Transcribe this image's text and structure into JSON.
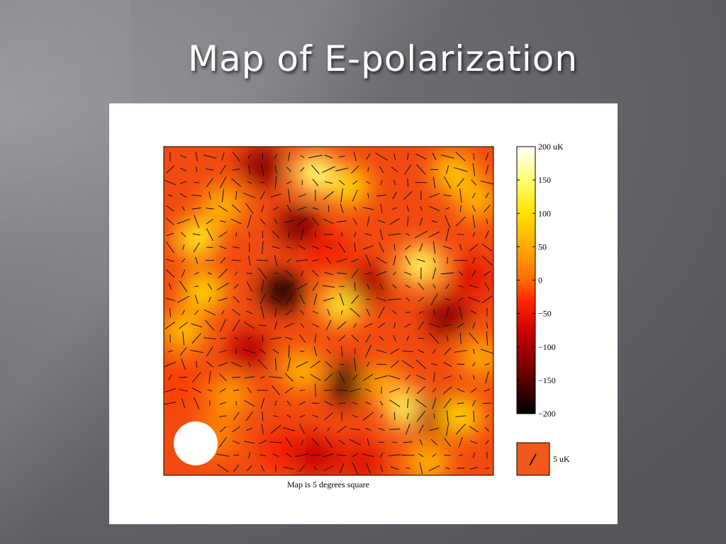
{
  "slide": {
    "title": "Map of E-polarization"
  },
  "chart_data": {
    "type": "heatmap",
    "title": "",
    "caption": "Map is 5 degrees square",
    "colorbar": {
      "top_label": "200 uK",
      "ticks": [
        200,
        150,
        100,
        50,
        0,
        -50,
        -100,
        -150,
        -200
      ],
      "tick_labels": [
        "200 uK",
        "150",
        "100",
        "50",
        "0",
        "−50",
        "−100",
        "−150",
        "−200"
      ],
      "range": [
        -200,
        200
      ],
      "colormap": "hot"
    },
    "vector_scale": {
      "label": "5 uK",
      "value": 5
    },
    "beam": {
      "shape": "circle",
      "location": "bottom-left",
      "color": "#ffffff"
    },
    "polarization_field": {
      "units": "uK",
      "grid": "about 25 × 25 headless sticks overlaid on the map",
      "temperature_blobs": [
        {
          "x": 1.0,
          "y": 3.6,
          "value": 110
        },
        {
          "x": 1.8,
          "y": 4.1,
          "value": 60
        },
        {
          "x": 4.6,
          "y": 4.6,
          "value": 150
        },
        {
          "x": 5.6,
          "y": 4.4,
          "value": 90
        },
        {
          "x": 3.0,
          "y": 4.7,
          "value": -120
        },
        {
          "x": 1.2,
          "y": 2.8,
          "value": 90
        },
        {
          "x": 0.6,
          "y": 2.2,
          "value": 70
        },
        {
          "x": 3.6,
          "y": 2.8,
          "value": -180
        },
        {
          "x": 4.1,
          "y": 3.8,
          "value": -130
        },
        {
          "x": 5.4,
          "y": 2.6,
          "value": 120
        },
        {
          "x": 6.2,
          "y": 2.9,
          "value": -100
        },
        {
          "x": 7.8,
          "y": 3.2,
          "value": 140
        },
        {
          "x": 8.6,
          "y": 2.4,
          "value": -120
        },
        {
          "x": 9.3,
          "y": 3.0,
          "value": -60
        },
        {
          "x": 8.8,
          "y": 4.6,
          "value": 80
        },
        {
          "x": 9.5,
          "y": 4.2,
          "value": 60
        },
        {
          "x": 2.6,
          "y": 1.9,
          "value": -90
        },
        {
          "x": 4.2,
          "y": 1.6,
          "value": 60
        },
        {
          "x": 5.6,
          "y": 1.4,
          "value": -170
        },
        {
          "x": 6.6,
          "y": 1.4,
          "value": 40
        },
        {
          "x": 7.4,
          "y": 1.0,
          "value": 140
        },
        {
          "x": 8.2,
          "y": 0.9,
          "value": -90
        },
        {
          "x": 9.0,
          "y": 0.9,
          "value": 90
        },
        {
          "x": 8.0,
          "y": 0.2,
          "value": 60
        },
        {
          "x": 1.6,
          "y": 0.6,
          "value": 20
        },
        {
          "x": 3.6,
          "y": 0.4,
          "value": -40
        },
        {
          "x": 4.6,
          "y": 0.3,
          "value": -80
        },
        {
          "x": 6.0,
          "y": 0.2,
          "value": -60
        },
        {
          "x": 2.0,
          "y": 1.2,
          "value": 40
        },
        {
          "x": 9.6,
          "y": 1.8,
          "value": 50
        },
        {
          "x": 0.4,
          "y": 1.4,
          "value": -20
        },
        {
          "x": 5.0,
          "y": 3.4,
          "value": -40
        }
      ]
    },
    "xlim": [
      0,
      10
    ],
    "ylim": [
      0,
      5
    ],
    "grid": false,
    "legend": "right"
  }
}
